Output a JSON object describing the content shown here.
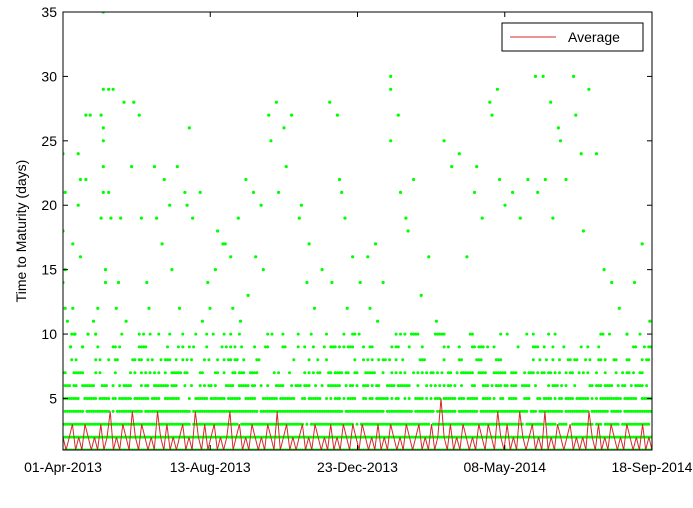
{
  "chart_data": {
    "type": "scatter",
    "title": "",
    "xlabel": "",
    "ylabel": "Time to Maturity (days)",
    "x_type": "date",
    "xlim": [
      "2013-04-01",
      "2014-09-24"
    ],
    "ylim": [
      1,
      35
    ],
    "x_tick_labels": [
      "01-Apr-2013",
      "13-Aug-2013",
      "23-Dec-2013",
      "08-May-2014",
      "18-Sep-2014"
    ],
    "y_ticks": [
      5,
      10,
      15,
      20,
      25,
      30,
      35
    ],
    "grid": false,
    "legend": {
      "position": "top-right",
      "entries": [
        "Average"
      ]
    },
    "colors": {
      "scatter": "#00ff00",
      "average": "#d42a2a",
      "axes": "#000000"
    },
    "series": [
      {
        "name": "",
        "style": "scatter",
        "points": [
          [
            "2013-04-01",
            24
          ],
          [
            "2013-04-01",
            18
          ],
          [
            "2013-04-01",
            14
          ],
          [
            "2013-04-03",
            21
          ],
          [
            "2013-04-03",
            15
          ],
          [
            "2013-04-03",
            12
          ],
          [
            "2013-04-05",
            11
          ],
          [
            "2013-04-08",
            9
          ],
          [
            "2013-04-10",
            17
          ],
          [
            "2013-04-10",
            12
          ],
          [
            "2013-04-12",
            10
          ],
          [
            "2013-04-15",
            24
          ],
          [
            "2013-04-15",
            20
          ],
          [
            "2013-04-17",
            16
          ],
          [
            "2013-04-17",
            22
          ],
          [
            "2013-04-19",
            9
          ],
          [
            "2013-04-22",
            27
          ],
          [
            "2013-04-22",
            22
          ],
          [
            "2013-04-24",
            10
          ],
          [
            "2013-04-26",
            27
          ],
          [
            "2013-04-29",
            11
          ],
          [
            "2013-05-01",
            10
          ],
          [
            "2013-05-03",
            12
          ],
          [
            "2013-05-06",
            27
          ],
          [
            "2013-05-06",
            19
          ],
          [
            "2013-05-08",
            35
          ],
          [
            "2013-05-08",
            29
          ],
          [
            "2013-05-08",
            26
          ],
          [
            "2013-05-08",
            25
          ],
          [
            "2013-05-08",
            23
          ],
          [
            "2013-05-08",
            21
          ],
          [
            "2013-05-10",
            15
          ],
          [
            "2013-05-10",
            14
          ],
          [
            "2013-05-13",
            29
          ],
          [
            "2013-05-13",
            21
          ],
          [
            "2013-05-15",
            19
          ],
          [
            "2013-05-17",
            29
          ],
          [
            "2013-05-20",
            12
          ],
          [
            "2013-05-22",
            14
          ],
          [
            "2013-05-24",
            19
          ],
          [
            "2013-05-27",
            28
          ],
          [
            "2013-05-29",
            11
          ],
          [
            "2013-06-03",
            23
          ],
          [
            "2013-06-05",
            28
          ],
          [
            "2013-06-10",
            27
          ],
          [
            "2013-06-12",
            19
          ],
          [
            "2013-06-17",
            14
          ],
          [
            "2013-06-19",
            12
          ],
          [
            "2013-06-24",
            23
          ],
          [
            "2013-06-26",
            19
          ],
          [
            "2013-07-01",
            17
          ],
          [
            "2013-07-03",
            22
          ],
          [
            "2013-07-08",
            20
          ],
          [
            "2013-07-10",
            15
          ],
          [
            "2013-07-15",
            23
          ],
          [
            "2013-07-17",
            12
          ],
          [
            "2013-07-22",
            21
          ],
          [
            "2013-07-24",
            20
          ],
          [
            "2013-07-26",
            26
          ],
          [
            "2013-07-29",
            19
          ],
          [
            "2013-08-05",
            21
          ],
          [
            "2013-08-07",
            11
          ],
          [
            "2013-08-12",
            14
          ],
          [
            "2013-08-14",
            12
          ],
          [
            "2013-08-19",
            15
          ],
          [
            "2013-08-21",
            18
          ],
          [
            "2013-08-26",
            17
          ],
          [
            "2013-08-28",
            17
          ],
          [
            "2013-09-02",
            16
          ],
          [
            "2013-09-04",
            12
          ],
          [
            "2013-09-09",
            19
          ],
          [
            "2013-09-11",
            11
          ],
          [
            "2013-09-16",
            22
          ],
          [
            "2013-09-18",
            13
          ],
          [
            "2013-09-23",
            21
          ],
          [
            "2013-09-25",
            16
          ],
          [
            "2013-09-30",
            20
          ],
          [
            "2013-10-02",
            15
          ],
          [
            "2013-10-07",
            27
          ],
          [
            "2013-10-09",
            25
          ],
          [
            "2013-10-14",
            28
          ],
          [
            "2013-10-16",
            21
          ],
          [
            "2013-10-21",
            26
          ],
          [
            "2013-10-23",
            23
          ],
          [
            "2013-10-28",
            27
          ],
          [
            "2013-11-04",
            19
          ],
          [
            "2013-11-06",
            20
          ],
          [
            "2013-11-11",
            14
          ],
          [
            "2013-11-13",
            17
          ],
          [
            "2013-11-18",
            12
          ],
          [
            "2013-11-25",
            15
          ],
          [
            "2013-12-02",
            28
          ],
          [
            "2013-12-04",
            14
          ],
          [
            "2013-12-09",
            27
          ],
          [
            "2013-12-11",
            22
          ],
          [
            "2013-12-13",
            21
          ],
          [
            "2013-12-16",
            19
          ],
          [
            "2013-12-18",
            12
          ],
          [
            "2013-12-23",
            16
          ],
          [
            "2013-12-30",
            14
          ],
          [
            "2014-01-06",
            16
          ],
          [
            "2014-01-08",
            12
          ],
          [
            "2014-01-13",
            17
          ],
          [
            "2014-01-15",
            11
          ],
          [
            "2014-01-20",
            14
          ],
          [
            "2014-01-27",
            30
          ],
          [
            "2014-01-27",
            29
          ],
          [
            "2014-01-27",
            25
          ],
          [
            "2014-02-03",
            27
          ],
          [
            "2014-02-05",
            21
          ],
          [
            "2014-02-10",
            19
          ],
          [
            "2014-02-12",
            18
          ],
          [
            "2014-02-17",
            22
          ],
          [
            "2014-02-24",
            13
          ],
          [
            "2014-03-03",
            16
          ],
          [
            "2014-03-10",
            11
          ],
          [
            "2014-03-17",
            25
          ],
          [
            "2014-03-24",
            23
          ],
          [
            "2014-03-31",
            24
          ],
          [
            "2014-04-07",
            16
          ],
          [
            "2014-04-14",
            21
          ],
          [
            "2014-04-16",
            23
          ],
          [
            "2014-04-21",
            19
          ],
          [
            "2014-04-28",
            28
          ],
          [
            "2014-04-30",
            27
          ],
          [
            "2014-05-05",
            29
          ],
          [
            "2014-05-07",
            22
          ],
          [
            "2014-05-12",
            20
          ],
          [
            "2014-05-19",
            21
          ],
          [
            "2014-05-26",
            19
          ],
          [
            "2014-06-02",
            22
          ],
          [
            "2014-06-09",
            30
          ],
          [
            "2014-06-11",
            21
          ],
          [
            "2014-06-16",
            30
          ],
          [
            "2014-06-18",
            22
          ],
          [
            "2014-06-23",
            28
          ],
          [
            "2014-06-25",
            19
          ],
          [
            "2014-06-30",
            26
          ],
          [
            "2014-07-02",
            25
          ],
          [
            "2014-07-07",
            22
          ],
          [
            "2014-07-14",
            30
          ],
          [
            "2014-07-16",
            27
          ],
          [
            "2014-07-21",
            24
          ],
          [
            "2014-07-23",
            18
          ],
          [
            "2014-07-28",
            29
          ],
          [
            "2014-08-04",
            24
          ],
          [
            "2014-08-11",
            15
          ],
          [
            "2014-08-18",
            14
          ],
          [
            "2014-08-25",
            12
          ],
          [
            "2014-09-01",
            10
          ],
          [
            "2014-09-08",
            14
          ],
          [
            "2014-09-15",
            17
          ],
          [
            "2014-09-22",
            11
          ]
        ]
      },
      {
        "name": "",
        "style": "scatter-dense",
        "x_start": "2013-04-01",
        "x_end": "2014-09-24",
        "levels": [
          1,
          2,
          3,
          4,
          5,
          6,
          7,
          8,
          9,
          10
        ],
        "density": [
          1.0,
          1.0,
          0.95,
          0.9,
          0.7,
          0.55,
          0.45,
          0.35,
          0.25,
          0.18
        ]
      },
      {
        "name": "Average",
        "style": "line",
        "x_start": "2013-04-01",
        "x_end": "2014-09-24",
        "values": [
          2,
          1,
          2,
          3,
          1,
          2,
          1,
          3,
          2,
          1,
          2,
          1,
          3,
          1,
          2,
          4,
          1,
          2,
          1,
          3,
          2,
          1,
          4,
          2,
          1,
          3,
          2,
          1,
          2,
          1,
          4,
          2,
          1,
          3,
          1,
          2,
          1,
          2,
          3,
          1,
          2,
          1,
          4,
          2,
          1,
          3,
          1,
          2,
          3,
          1,
          2,
          1,
          2,
          4,
          1,
          2,
          3,
          1,
          2,
          1,
          3,
          2,
          1,
          2,
          1,
          3,
          2,
          1,
          4,
          1,
          2,
          3,
          1,
          2,
          1,
          2,
          3,
          1,
          2,
          1,
          3,
          2,
          1,
          2,
          1,
          3,
          1,
          2,
          1,
          3,
          2,
          1,
          3,
          2,
          1,
          3,
          2,
          1,
          2,
          1,
          3,
          1,
          2,
          1,
          3,
          2,
          1,
          2,
          1,
          3,
          2,
          1,
          2,
          3,
          1,
          2,
          1,
          3,
          1,
          2,
          5,
          2,
          1,
          3,
          1,
          2,
          1,
          3,
          2,
          1,
          2,
          1,
          3,
          2,
          1,
          3,
          2,
          1,
          4,
          2,
          1,
          3,
          1,
          2,
          1,
          4,
          2,
          1,
          2,
          3,
          1,
          2,
          1,
          4,
          1,
          2,
          1,
          3,
          2,
          1,
          2,
          3,
          1,
          2,
          1,
          2,
          1,
          4,
          2,
          1,
          3,
          1,
          2,
          1,
          3,
          2,
          1,
          2,
          1,
          3,
          2,
          1,
          2,
          1,
          3,
          1,
          2,
          1
        ]
      }
    ]
  }
}
